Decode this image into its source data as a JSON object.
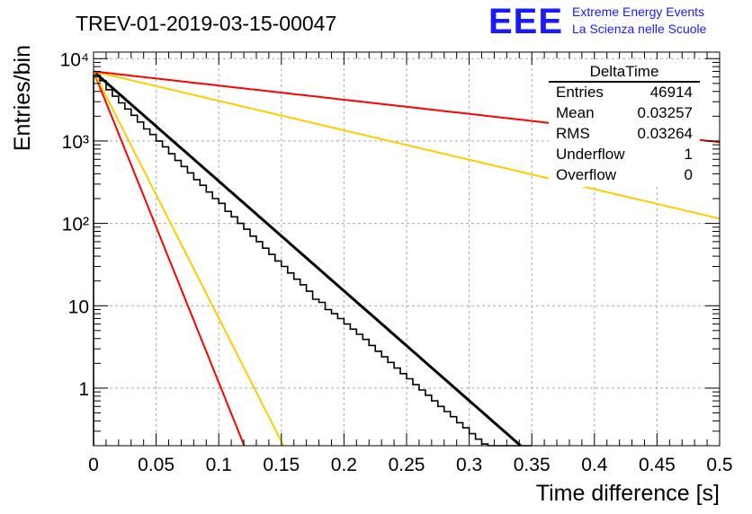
{
  "chart_data": {
    "type": "histogram",
    "title": "TREV-01-2019-03-15-00047",
    "xlabel": "Time difference [s]",
    "ylabel": "Entries/bin",
    "xlim": [
      0,
      0.5
    ],
    "ylim": [
      0.2,
      12000
    ],
    "yscale": "log",
    "grid": true,
    "x_ticks": [
      "0",
      "0.05",
      "0.1",
      "0.15",
      "0.2",
      "0.25",
      "0.3",
      "0.35",
      "0.4",
      "0.45",
      "0.5"
    ],
    "y_ticks": [
      "1",
      "10",
      "10²",
      "10³",
      "10⁴"
    ],
    "histogram": {
      "name": "DeltaTime",
      "color": "#000000",
      "bin_edges": [
        0,
        0.005,
        0.01,
        0.015,
        0.02,
        0.025,
        0.03,
        0.035,
        0.04,
        0.045,
        0.05,
        0.055,
        0.06,
        0.065,
        0.07,
        0.075,
        0.08,
        0.085,
        0.09,
        0.095,
        0.1,
        0.105,
        0.11,
        0.115,
        0.12,
        0.125,
        0.13,
        0.135,
        0.14,
        0.145,
        0.15,
        0.155,
        0.16,
        0.165,
        0.17,
        0.175,
        0.18,
        0.185,
        0.19,
        0.195,
        0.2,
        0.205,
        0.21,
        0.215,
        0.22,
        0.225,
        0.23,
        0.235,
        0.24,
        0.245,
        0.25,
        0.255,
        0.26,
        0.265,
        0.27,
        0.275,
        0.28,
        0.285,
        0.29,
        0.295,
        0.3,
        0.305,
        0.31,
        0.315,
        0.32,
        0.325,
        0.33,
        0.335,
        0.34,
        0.345,
        0.35
      ],
      "counts": [
        6300,
        5400,
        4200,
        3500,
        2900,
        2450,
        2050,
        1700,
        1400,
        1200,
        1000,
        850,
        700,
        580,
        490,
        410,
        340,
        290,
        240,
        200,
        175,
        140,
        120,
        100,
        85,
        70,
        60,
        50,
        42,
        35,
        30,
        25,
        21,
        18,
        15,
        12,
        11,
        9,
        8,
        7,
        6,
        5.2,
        4.5,
        3.9,
        3.3,
        2.8,
        2.4,
        2.05,
        1.75,
        1.5,
        1.3,
        1.1,
        0.95,
        0.82,
        0.7,
        0.6,
        0.52,
        0.45,
        0.38,
        0.33,
        0.28,
        0.24,
        0.21,
        0,
        0,
        0,
        0,
        0,
        0,
        0
      ]
    },
    "fits": [
      {
        "color": "#000000",
        "A": 7000,
        "tau": 0.0326,
        "x_end": 0.345
      },
      {
        "color": "#ff0000",
        "A": 7000,
        "tau": 0.0115,
        "x_end": 0.5
      },
      {
        "color": "#ffcc00",
        "A": 7000,
        "tau": 0.0145,
        "x_end": 0.5
      },
      {
        "color": "#ffcc00",
        "A": 7000,
        "tau": 0.1215,
        "x_end": 0.5
      },
      {
        "color": "#ff0000",
        "A": 7000,
        "tau": 0.2527,
        "x_end": 0.5
      }
    ]
  },
  "stats": {
    "name": "DeltaTime",
    "rows": [
      {
        "label": "Entries",
        "value": "46914"
      },
      {
        "label": "Mean",
        "value": "0.03257"
      },
      {
        "label": "RMS",
        "value": "0.03264"
      },
      {
        "label": "Underflow",
        "value": "1"
      },
      {
        "label": "Overflow",
        "value": "0"
      }
    ]
  },
  "logo": {
    "mark": "EEE",
    "line1": "Extreme Energy Events",
    "line2": "La Scienza nelle Scuole"
  },
  "colors": {
    "logo_blue": "#1a1aff",
    "fit_red": "#ff0000",
    "fit_yellow": "#ffcc00",
    "histogram": "#000000"
  }
}
